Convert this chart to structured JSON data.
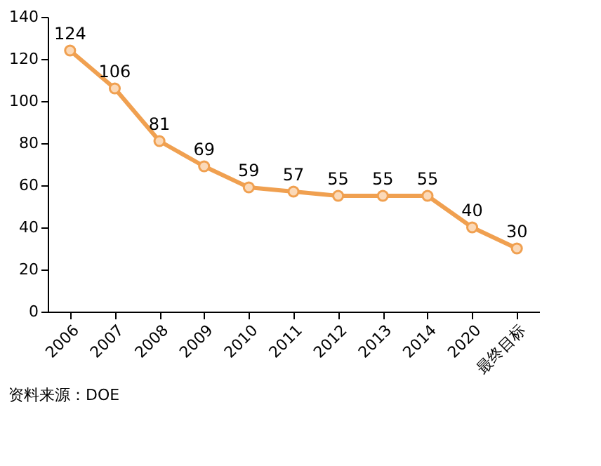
{
  "chart_data": {
    "type": "line",
    "categories": [
      "2006",
      "2007",
      "2008",
      "2009",
      "2010",
      "2011",
      "2012",
      "2013",
      "2014",
      "2020",
      "最终目标"
    ],
    "series": [
      {
        "color": "#f0a050",
        "values": [
          124,
          106,
          81,
          69,
          59,
          57,
          55,
          55,
          55,
          40,
          30
        ]
      }
    ],
    "ylim": [
      0,
      140
    ],
    "yticks": [
      0,
      20,
      40,
      60,
      80,
      100,
      120,
      140
    ],
    "data_labels": true,
    "marker": "circle",
    "line_style": "solid",
    "grid": false,
    "annotations": [
      "资料来源：DOE"
    ]
  }
}
